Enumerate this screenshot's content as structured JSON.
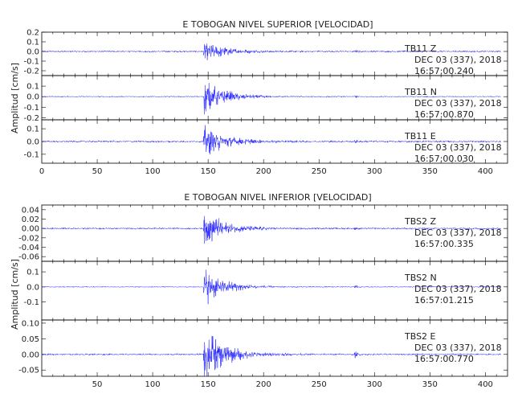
{
  "chart_data": [
    {
      "type": "line",
      "title": "E TOBOGAN NIVEL SUPERIOR [VELOCIDAD]",
      "ylabel": "Amplitud [cm/s]",
      "xlim": [
        0,
        420
      ],
      "xticks": [
        0,
        50,
        100,
        150,
        200,
        250,
        300,
        350,
        400
      ],
      "panels": [
        {
          "station": "TB11",
          "component": "Z",
          "date": "DEC 03 (337), 2018",
          "time": "16:57:00.240",
          "ylim": [
            -0.25,
            0.2
          ],
          "yticks": [
            "0.2",
            "0.1",
            "0.0",
            "-0.1",
            "-0.2"
          ],
          "ytick_values": [
            0.2,
            0.1,
            0.0,
            -0.1,
            -0.2
          ],
          "onset_s": 146,
          "peak_amp": 0.12,
          "noise_amp": 0.01,
          "secondary_event_s": 282
        },
        {
          "station": "TB11",
          "component": "N",
          "date": "DEC 03 (337), 2018",
          "time": "16:57:00.870",
          "ylim": [
            -0.22,
            0.2
          ],
          "yticks": [
            "0.1",
            "0.0",
            "-0.1",
            "-0.2"
          ],
          "ytick_values": [
            0.1,
            0.0,
            -0.1,
            -0.2
          ],
          "onset_s": 146,
          "peak_amp": 0.18,
          "noise_amp": 0.006,
          "secondary_event_s": 282
        },
        {
          "station": "TB11",
          "component": "E",
          "date": "DEC 03 (337), 2018",
          "time": "16:57:00.030",
          "ylim": [
            -0.17,
            0.17
          ],
          "yticks": [
            "0.1",
            "0.0",
            "-0.1"
          ],
          "ytick_values": [
            0.1,
            0.0,
            -0.1
          ],
          "onset_s": 146,
          "peak_amp": 0.15,
          "noise_amp": 0.008,
          "secondary_event_s": 282
        }
      ]
    },
    {
      "type": "line",
      "title": "E TOBOGAN NIVEL INFERIOR [VELOCIDAD]",
      "ylabel": "Amplitud [cm/s]",
      "xlim": [
        0,
        420
      ],
      "xticks": [
        50,
        100,
        150,
        200,
        250,
        300,
        350,
        400
      ],
      "panels": [
        {
          "station": "TBS2",
          "component": "Z",
          "date": "DEC 03 (337), 2018",
          "time": "16:57:00.335",
          "ylim": [
            -0.07,
            0.05
          ],
          "yticks": [
            "0.04",
            "0.02",
            "0.00",
            "-0.02",
            "-0.04",
            "-0.06"
          ],
          "ytick_values": [
            0.04,
            0.02,
            0.0,
            -0.02,
            -0.04,
            -0.06
          ],
          "onset_s": 146,
          "peak_amp": 0.045,
          "noise_amp": 0.002,
          "secondary_event_s": 282
        },
        {
          "station": "TBS2",
          "component": "N",
          "date": "DEC 03 (337), 2018",
          "time": "16:57:01.215",
          "ylim": [
            -0.22,
            0.17
          ],
          "yticks": [
            "0.1",
            "0.0",
            "-0.1"
          ],
          "ytick_values": [
            0.1,
            0.0,
            -0.1
          ],
          "onset_s": 146,
          "peak_amp": 0.14,
          "noise_amp": 0.004,
          "secondary_event_s": 282
        },
        {
          "station": "TBS2",
          "component": "E",
          "date": "DEC 03 (337), 2018",
          "time": "16:57:00.770",
          "ylim": [
            -0.07,
            0.11
          ],
          "yticks": [
            "0.10",
            "0.05",
            "0.00",
            "-0.05"
          ],
          "ytick_values": [
            0.1,
            0.05,
            0.0,
            -0.05
          ],
          "onset_s": 146,
          "peak_amp": 0.1,
          "noise_amp": 0.003,
          "secondary_event_s": 282
        }
      ]
    }
  ],
  "colors": {
    "trace": "#1a1aff",
    "frame": "#000000",
    "text": "#222222"
  }
}
